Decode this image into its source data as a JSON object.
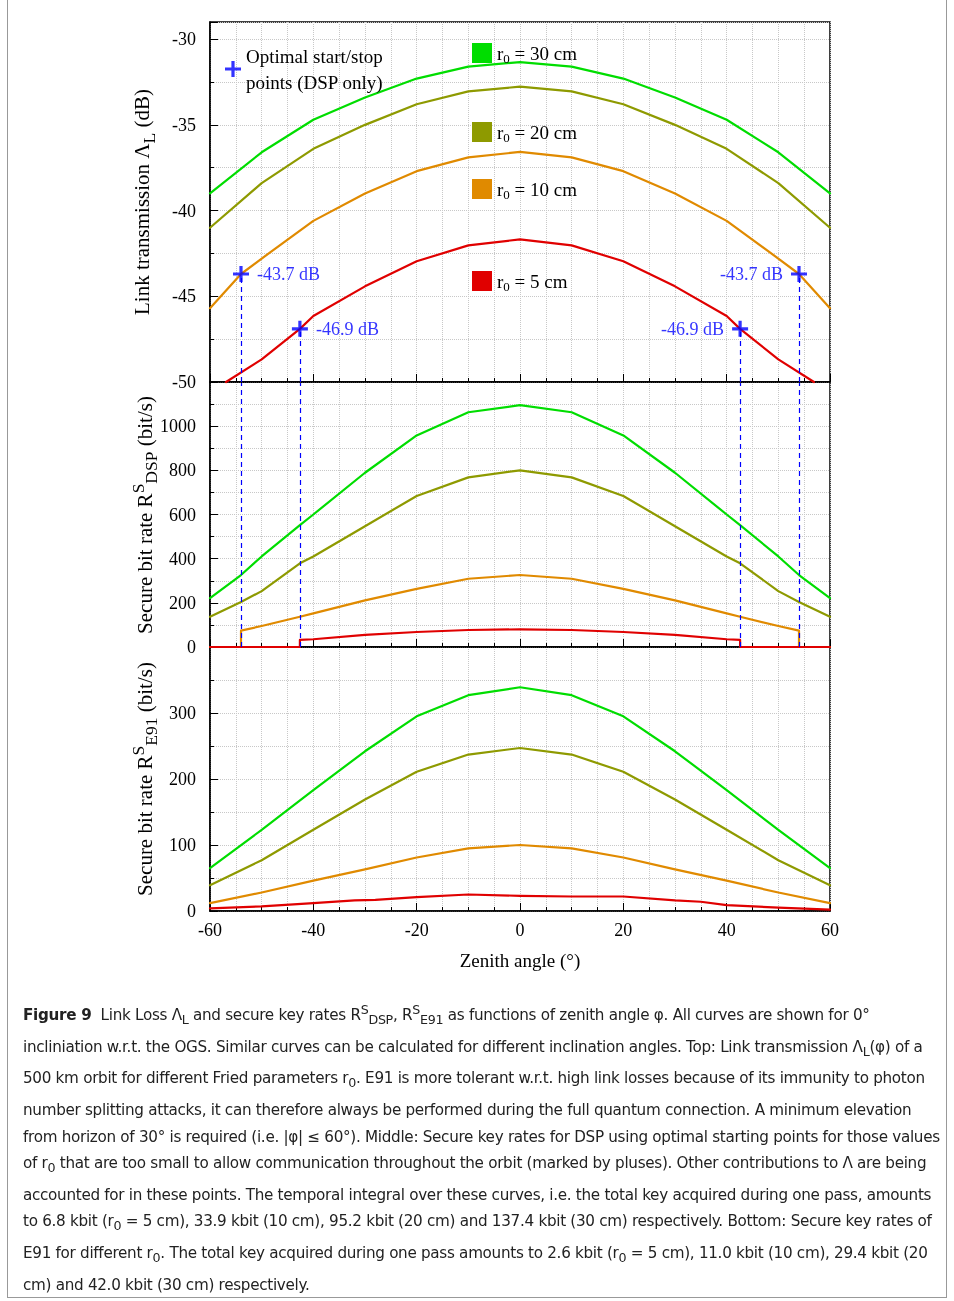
{
  "chart_data": [
    {
      "type": "line",
      "ylabel": "Link transmission Λ$_{L}$ (dB)",
      "xlim": [
        -60,
        60
      ],
      "xticks": [
        -60,
        -40,
        -20,
        0,
        20,
        40,
        60
      ],
      "ylim": [
        -50,
        -29
      ],
      "yticks": [
        -50,
        -45,
        -40,
        -35,
        -30
      ],
      "tick_labels": "y",
      "grid": true,
      "legend": "top",
      "marker": "none",
      "line_style": "solid",
      "x": [
        -60,
        -50,
        -40,
        -30,
        -20,
        -10,
        0,
        10,
        20,
        30,
        40,
        50,
        60
      ],
      "series": [
        {
          "name": "r$_{0}$ = 30 cm",
          "color": "#00dd00",
          "values": [
            -39.0,
            -36.6,
            -34.7,
            -33.4,
            -32.3,
            -31.6,
            -31.34,
            -31.6,
            -32.3,
            -33.4,
            -34.7,
            -36.6,
            -39.0
          ]
        },
        {
          "name": "r$_{0}$ = 20 cm",
          "color": "#8e9a00",
          "values": [
            -41.0,
            -38.4,
            -36.4,
            -35.0,
            -33.8,
            -33.05,
            -32.77,
            -33.05,
            -33.8,
            -35.0,
            -36.4,
            -38.4,
            -41.0
          ]
        },
        {
          "name": "r$_{0}$ = 10 cm",
          "color": "#e08a00",
          "x": [
            -60,
            -54,
            -50,
            -40,
            -30,
            -20,
            -10,
            0,
            10,
            20,
            30,
            40,
            50,
            54,
            60
          ],
          "values": [
            -45.7,
            -43.7,
            -42.8,
            -40.6,
            -39.0,
            -37.7,
            -36.9,
            -36.58,
            -36.9,
            -37.7,
            -39.0,
            -40.6,
            -42.8,
            -43.7,
            -45.7
          ]
        },
        {
          "name": "r$_{0}$ = 5 cm",
          "color": "#e00000",
          "x": [
            -56.9,
            -50,
            -42.6,
            -40,
            -30,
            -20,
            -10,
            0,
            10,
            20,
            30,
            40,
            42.6,
            50,
            56.9
          ],
          "values": [
            -50,
            -48.68,
            -46.9,
            -46.15,
            -44.42,
            -42.96,
            -42.03,
            -41.68,
            -42.03,
            -42.96,
            -44.42,
            -46.15,
            -46.9,
            -48.68,
            -50
          ]
        },
        {
          "name": "Optimal start/stop points (DSP only)",
          "type": "scatter",
          "marker": "cross",
          "color": "#0000ff",
          "x": [
            -54,
            -42.6,
            42.6,
            54
          ],
          "values": [
            -43.7,
            -46.9,
            -46.9,
            -43.7
          ],
          "value_labels": [
            "-43.7 dB",
            "-46.9 dB",
            "-46.9 dB",
            "-43.7 dB"
          ]
        }
      ],
      "ref_lines": [
        {
          "axis": "x",
          "value": -54,
          "color": "#0000ff",
          "line_style": "dashed"
        },
        {
          "axis": "x",
          "value": -42.6,
          "color": "#0000ff",
          "line_style": "dashed"
        },
        {
          "axis": "x",
          "value": 42.6,
          "color": "#0000ff",
          "line_style": "dashed"
        },
        {
          "axis": "x",
          "value": 54,
          "color": "#0000ff",
          "line_style": "dashed"
        }
      ]
    },
    {
      "type": "line",
      "ylabel": "Secure bit rate R$^{S}$$_{DSP}$ (bit/s)",
      "xlim": [
        -60,
        60
      ],
      "xticks": [
        -60,
        -40,
        -20,
        0,
        20,
        40,
        60
      ],
      "ylim": [
        0,
        1200
      ],
      "yticks": [
        0,
        200,
        400,
        600,
        800,
        1000
      ],
      "tick_labels": "y",
      "grid": true,
      "marker": "none",
      "line_style": "solid",
      "x": [
        -60,
        -54,
        -50,
        -42.6,
        -40,
        -30,
        -20,
        -10,
        0,
        10,
        20,
        30,
        40,
        42.6,
        50,
        54,
        60
      ],
      "series": [
        {
          "color": "#00dd00",
          "values": [
            221,
            326,
            410,
            552,
            600,
            789,
            958,
            1063,
            1095,
            1063,
            958,
            789,
            600,
            552,
            410,
            326,
            221
          ]
        },
        {
          "color": "#8e9a00",
          "values": [
            137,
            204,
            253,
            379,
            410,
            547,
            684,
            768,
            800,
            768,
            684,
            547,
            410,
            379,
            253,
            204,
            137
          ]
        },
        {
          "color": "#e08a00",
          "x": [
            -60,
            -54,
            -54,
            -50,
            -42.6,
            -40,
            -30,
            -20,
            -10,
            0,
            10,
            20,
            30,
            40,
            42.6,
            50,
            54,
            54,
            60
          ],
          "values": [
            0,
            0,
            74,
            95,
            137,
            152,
            211,
            263,
            309,
            326,
            309,
            263,
            211,
            152,
            137,
            95,
            74,
            0,
            0
          ]
        },
        {
          "color": "#e00000",
          "x": [
            -60,
            -42.6,
            -42.6,
            -40,
            -30,
            -20,
            -10,
            0,
            10,
            20,
            30,
            40,
            42.6,
            42.6,
            60
          ],
          "values": [
            0,
            0,
            32,
            35,
            55,
            68,
            77,
            80,
            77,
            68,
            55,
            35,
            32,
            0,
            0
          ]
        }
      ],
      "ref_lines": [
        {
          "axis": "x",
          "value": -54,
          "color": "#0000ff",
          "line_style": "dashed"
        },
        {
          "axis": "x",
          "value": -42.6,
          "color": "#0000ff",
          "line_style": "dashed"
        },
        {
          "axis": "x",
          "value": 42.6,
          "color": "#0000ff",
          "line_style": "dashed"
        },
        {
          "axis": "x",
          "value": 54,
          "color": "#0000ff",
          "line_style": "dashed"
        }
      ]
    },
    {
      "type": "line",
      "ylabel": "Secure bit rate R$^{S}$$_{E91}$ (bit/s)",
      "xlabel": "Zenith angle (°)",
      "xlim": [
        -60,
        60
      ],
      "xticks": [
        -60,
        -40,
        -20,
        0,
        20,
        40,
        60
      ],
      "ylim": [
        0,
        400
      ],
      "yticks": [
        0,
        100,
        200,
        300
      ],
      "grid": true,
      "marker": "none",
      "line_style": "solid",
      "x": [
        -60,
        -50,
        -40,
        -30,
        -20,
        -10,
        0,
        10,
        20,
        30,
        40,
        50,
        60
      ],
      "series": [
        {
          "color": "#00dd00",
          "values": [
            65,
            123,
            183,
            242,
            295,
            327,
            339,
            327,
            295,
            242,
            183,
            123,
            65
          ]
        },
        {
          "color": "#8e9a00",
          "values": [
            39,
            77,
            123,
            169,
            211,
            237,
            247,
            237,
            211,
            169,
            123,
            77,
            39
          ]
        },
        {
          "color": "#e08a00",
          "values": [
            12,
            28,
            46,
            63,
            81,
            95,
            100,
            95,
            81,
            63,
            46,
            28,
            12
          ]
        },
        {
          "color": "#e00000",
          "x": [
            -60,
            -50,
            -40,
            -32,
            -28,
            -20,
            -10,
            0,
            10,
            20,
            30,
            35,
            40,
            50,
            60
          ],
          "values": [
            4,
            7,
            12,
            16,
            17,
            21,
            25,
            23,
            22,
            22,
            16,
            14,
            9,
            5,
            2
          ]
        }
      ],
      "annotations": [
        "Figure 9",
        "Link Loss Λ$_{L}$ and secure key rates R$^{S}$$_{DSP}$, R$^{S}$$_{E91}$ as functions of zenith angle φ. All curves are shown for 0° incliniation w.r.t. the OGS. Similar curves can be calculated for different inclination angles. Top: Link transmission Λ$_{L}$(φ) of a 500 km orbit for different Fried parameters r$_{0}$. E91 is more tolerant w.r.t. high link losses because of its immunity to photon number splitting attacks, it can therefore always be performed during the full quantum connection. A minimum elevation from horizon of 30° is required (i.e. |φ| ≤ 60°). Middle: Secure key rates for DSP using optimal starting points for those values of r$_{0}$ that are too small to allow communication throughout the orbit (marked by pluses). Other contributions to Λ are being accounted for in these points. The temporal integral over these curves, i.e. the total key acquired during one pass, amounts to 6.8 kbit (r$_{0}$ = 5 cm), 33.9 kbit (10 cm), 95.2 kbit (20 cm) and 137.4 kbit (30 cm) respectively. Bottom: Secure key rates of E91 for different r$_{0}$. The total key acquired during one pass amounts to 2.6 kbit (r$_{0}$ = 5 cm), 11.0 kbit (10 cm), 29.4 kbit (20 cm) and 42.0 kbit (30 cm) respectively."
      ]
    }
  ]
}
